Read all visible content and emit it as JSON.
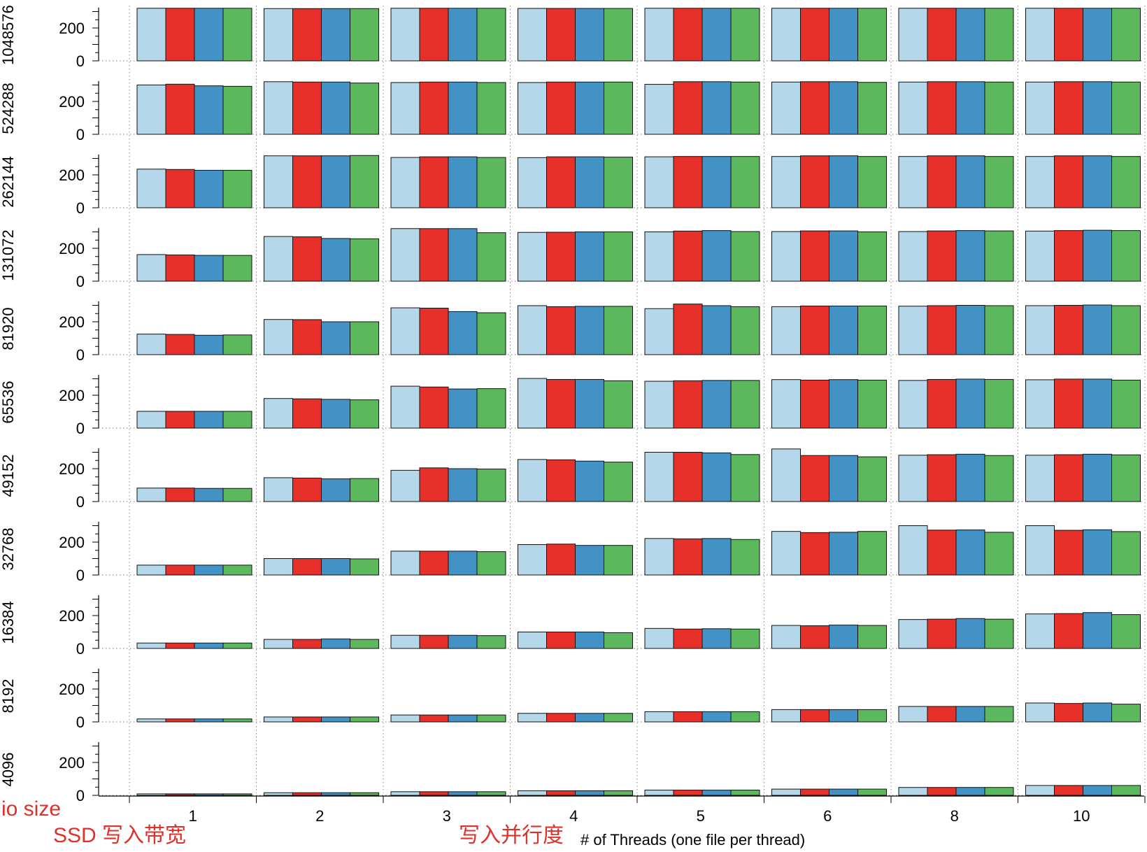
{
  "chart_data": {
    "type": "bar",
    "layout": "small-multiples",
    "categories": [
      "1",
      "2",
      "3",
      "4",
      "5",
      "6",
      "8",
      "10"
    ],
    "xlabel": "# of Threads (one file per thread)",
    "yticks": [
      "0",
      "200"
    ],
    "ylim": [
      0,
      320
    ],
    "grid": "dotted vertical separators",
    "series_colors": [
      "#b5d7ea",
      "#e8302a",
      "#4292c6",
      "#5cb85c"
    ],
    "panels": [
      {
        "label": "1048576",
        "series": [
          [
            320,
            320,
            320,
            320
          ],
          [
            318,
            318,
            318,
            318
          ],
          [
            320,
            320,
            320,
            320
          ],
          [
            319,
            319,
            319,
            319
          ],
          [
            320,
            320,
            320,
            320
          ],
          [
            320,
            320,
            320,
            320
          ],
          [
            320,
            320,
            320,
            320
          ],
          [
            320,
            320,
            320,
            320
          ]
        ]
      },
      {
        "label": "524288",
        "series": [
          [
            300,
            305,
            295,
            292
          ],
          [
            320,
            318,
            318,
            312
          ],
          [
            315,
            318,
            318,
            315
          ],
          [
            315,
            318,
            318,
            318
          ],
          [
            304,
            320,
            320,
            318
          ],
          [
            318,
            320,
            320,
            316
          ],
          [
            318,
            320,
            320,
            318
          ],
          [
            318,
            320,
            320,
            318
          ]
        ]
      },
      {
        "label": "262144",
        "series": [
          [
            235,
            233,
            228,
            228
          ],
          [
            316,
            316,
            316,
            318
          ],
          [
            306,
            310,
            310,
            306
          ],
          [
            305,
            310,
            310,
            308
          ],
          [
            310,
            312,
            312,
            312
          ],
          [
            312,
            316,
            316,
            312
          ],
          [
            312,
            316,
            316,
            312
          ],
          [
            312,
            316,
            316,
            312
          ]
        ]
      },
      {
        "label": "131072",
        "series": [
          [
            162,
            160,
            157,
            157
          ],
          [
            272,
            270,
            260,
            258
          ],
          [
            320,
            320,
            320,
            295
          ],
          [
            297,
            298,
            300,
            300
          ],
          [
            300,
            305,
            308,
            302
          ],
          [
            302,
            306,
            306,
            300
          ],
          [
            302,
            306,
            308,
            306
          ],
          [
            305,
            308,
            310,
            308
          ]
        ]
      },
      {
        "label": "81920",
        "series": [
          [
            125,
            123,
            118,
            120
          ],
          [
            214,
            213,
            200,
            200
          ],
          [
            285,
            283,
            262,
            255
          ],
          [
            298,
            292,
            294,
            294
          ],
          [
            280,
            308,
            298,
            292
          ],
          [
            292,
            296,
            296,
            296
          ],
          [
            295,
            298,
            300,
            298
          ],
          [
            298,
            300,
            302,
            298
          ]
        ]
      },
      {
        "label": "65536",
        "series": [
          [
            102,
            102,
            102,
            102
          ],
          [
            180,
            178,
            175,
            172
          ],
          [
            255,
            250,
            238,
            240
          ],
          [
            302,
            296,
            296,
            288
          ],
          [
            285,
            288,
            290,
            290
          ],
          [
            295,
            292,
            295,
            292
          ],
          [
            290,
            296,
            298,
            296
          ],
          [
            294,
            298,
            298,
            292
          ]
        ]
      },
      {
        "label": "49152",
        "series": [
          [
            82,
            82,
            80,
            80
          ],
          [
            145,
            143,
            138,
            140
          ],
          [
            190,
            205,
            200,
            198
          ],
          [
            256,
            254,
            246,
            240
          ],
          [
            300,
            300,
            296,
            286
          ],
          [
            320,
            280,
            280,
            272
          ],
          [
            282,
            285,
            288,
            280
          ],
          [
            282,
            285,
            288,
            284
          ]
        ]
      },
      {
        "label": "32768",
        "series": [
          [
            60,
            60,
            60,
            60
          ],
          [
            100,
            100,
            100,
            98
          ],
          [
            145,
            145,
            145,
            142
          ],
          [
            185,
            188,
            180,
            180
          ],
          [
            222,
            220,
            222,
            216
          ],
          [
            265,
            258,
            260,
            265
          ],
          [
            300,
            273,
            274,
            260
          ],
          [
            300,
            272,
            275,
            264
          ]
        ]
      },
      {
        "label": "16384",
        "series": [
          [
            33,
            33,
            33,
            33
          ],
          [
            55,
            55,
            58,
            55
          ],
          [
            80,
            80,
            80,
            78
          ],
          [
            100,
            100,
            100,
            96
          ],
          [
            122,
            118,
            120,
            118
          ],
          [
            140,
            138,
            142,
            140
          ],
          [
            176,
            178,
            182,
            178
          ],
          [
            210,
            212,
            218,
            206
          ]
        ]
      },
      {
        "label": "8192",
        "series": [
          [
            18,
            18,
            18,
            18
          ],
          [
            30,
            30,
            30,
            30
          ],
          [
            42,
            42,
            42,
            42
          ],
          [
            52,
            52,
            52,
            52
          ],
          [
            62,
            62,
            62,
            62
          ],
          [
            75,
            75,
            75,
            75
          ],
          [
            94,
            94,
            94,
            94
          ],
          [
            115,
            112,
            115,
            108
          ]
        ]
      },
      {
        "label": "4096",
        "series": [
          [
            9,
            9,
            9,
            9
          ],
          [
            16,
            16,
            16,
            16
          ],
          [
            22,
            22,
            22,
            22
          ],
          [
            28,
            28,
            28,
            28
          ],
          [
            32,
            32,
            32,
            32
          ],
          [
            38,
            38,
            38,
            38
          ],
          [
            48,
            48,
            48,
            48
          ],
          [
            60,
            60,
            60,
            60
          ]
        ]
      }
    ]
  },
  "annotations": {
    "io_size": "io size",
    "ssd_bandwidth": "SSD 写入带宽",
    "parallelism": "写入并行度"
  }
}
